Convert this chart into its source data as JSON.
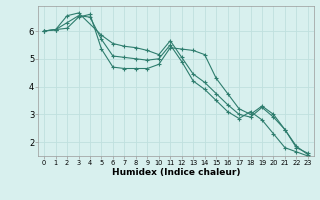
{
  "xlabel": "Humidex (Indice chaleur)",
  "background_color": "#d8f0ee",
  "grid_color": "#c0e0de",
  "line_color": "#2e7d6e",
  "xlim": [
    -0.5,
    23.5
  ],
  "ylim": [
    1.5,
    6.9
  ],
  "yticks": [
    2,
    3,
    4,
    5,
    6
  ],
  "xticks": [
    0,
    1,
    2,
    3,
    4,
    5,
    6,
    7,
    8,
    9,
    10,
    11,
    12,
    13,
    14,
    15,
    16,
    17,
    18,
    19,
    20,
    21,
    22,
    23
  ],
  "series1_x": [
    0,
    1,
    2,
    3,
    5,
    6,
    7,
    8,
    9,
    10,
    11,
    12,
    13,
    14,
    15,
    16,
    17,
    18,
    19,
    20,
    21,
    22,
    23
  ],
  "series1_y": [
    6.0,
    6.05,
    6.55,
    6.65,
    5.85,
    5.55,
    5.45,
    5.4,
    5.3,
    5.15,
    5.65,
    5.05,
    4.45,
    4.15,
    3.75,
    3.35,
    3.0,
    2.9,
    3.25,
    2.9,
    2.45,
    1.85,
    1.55
  ],
  "series2_x": [
    0,
    1,
    2,
    3,
    4,
    5,
    6,
    7,
    8,
    9,
    10,
    11,
    12,
    13,
    14,
    15,
    16,
    17,
    18,
    19,
    20,
    21,
    22,
    23
  ],
  "series2_y": [
    6.0,
    6.05,
    6.1,
    6.5,
    6.6,
    5.35,
    4.7,
    4.65,
    4.65,
    4.65,
    4.8,
    5.4,
    5.35,
    5.3,
    5.15,
    4.3,
    3.75,
    3.2,
    3.0,
    3.3,
    3.0,
    2.45,
    1.8,
    1.6
  ],
  "series3_x": [
    0,
    1,
    2,
    3,
    4,
    5,
    6,
    7,
    8,
    9,
    10,
    11,
    12,
    13,
    14,
    15,
    16,
    17,
    18,
    19,
    20,
    21,
    22,
    23
  ],
  "series3_y": [
    6.0,
    6.05,
    6.3,
    6.55,
    6.5,
    5.7,
    5.1,
    5.05,
    5.0,
    4.95,
    5.0,
    5.5,
    4.9,
    4.2,
    3.9,
    3.5,
    3.1,
    2.85,
    3.1,
    2.8,
    2.3,
    1.8,
    1.65,
    1.5
  ]
}
